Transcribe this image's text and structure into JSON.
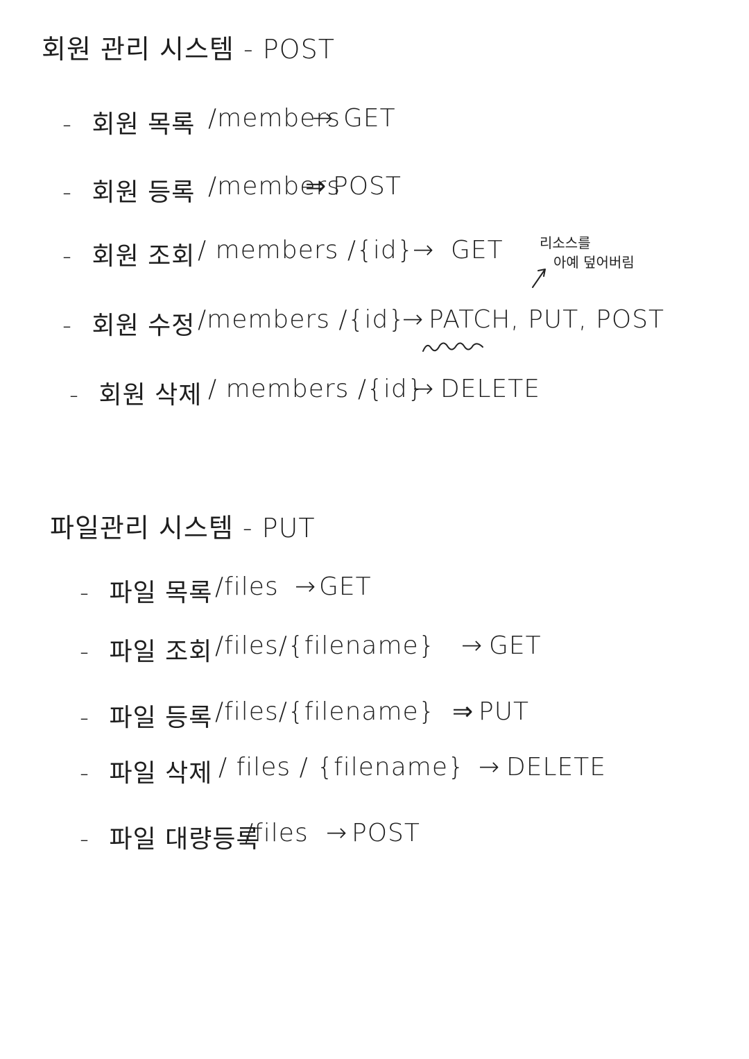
{
  "colors": {
    "ink": "#1e1e1e",
    "paper": "#ffffff"
  },
  "member_section": {
    "title": "회원 관리 시스템 - POST",
    "rows": [
      {
        "dash": "-",
        "label": "회원 목록",
        "path": "/members",
        "arrow": "→",
        "method": "GET"
      },
      {
        "dash": "-",
        "label": "회원 등록",
        "path": "/members",
        "arrow": "⇒",
        "method": "POST"
      },
      {
        "dash": "-",
        "label": "회원 조회",
        "path": "/ members /{id}",
        "arrow": "→",
        "method": "GET"
      },
      {
        "dash": "-",
        "label": "회원 수정",
        "path": "/members /{id}",
        "arrow": "→",
        "method": "PATCH, PUT, POST"
      },
      {
        "dash": "-",
        "label": "회원 삭제",
        "path": "/ members /{id}",
        "arrow": "→",
        "method": "DELETE"
      }
    ],
    "note_line1": "리소스를",
    "note_line2": "아예 덮어버림"
  },
  "file_section": {
    "title": "파일관리 시스템 - PUT",
    "rows": [
      {
        "dash": "-",
        "label": "파일 목록",
        "path": "/files",
        "arrow": "→",
        "method": "GET"
      },
      {
        "dash": "-",
        "label": "파일 조회",
        "path": "/files/{filename}",
        "arrow": "→",
        "method": "GET"
      },
      {
        "dash": "-",
        "label": "파일 등록",
        "path": "/files/{filename}",
        "arrow": "⇒",
        "method": "PUT"
      },
      {
        "dash": "-",
        "label": "파일 삭제",
        "path": "/ files / {filename}",
        "arrow": "→",
        "method": "DELETE"
      },
      {
        "dash": "-",
        "label": "파일 대량등록",
        "path": "/files",
        "arrow": "→",
        "method": "POST"
      }
    ]
  }
}
